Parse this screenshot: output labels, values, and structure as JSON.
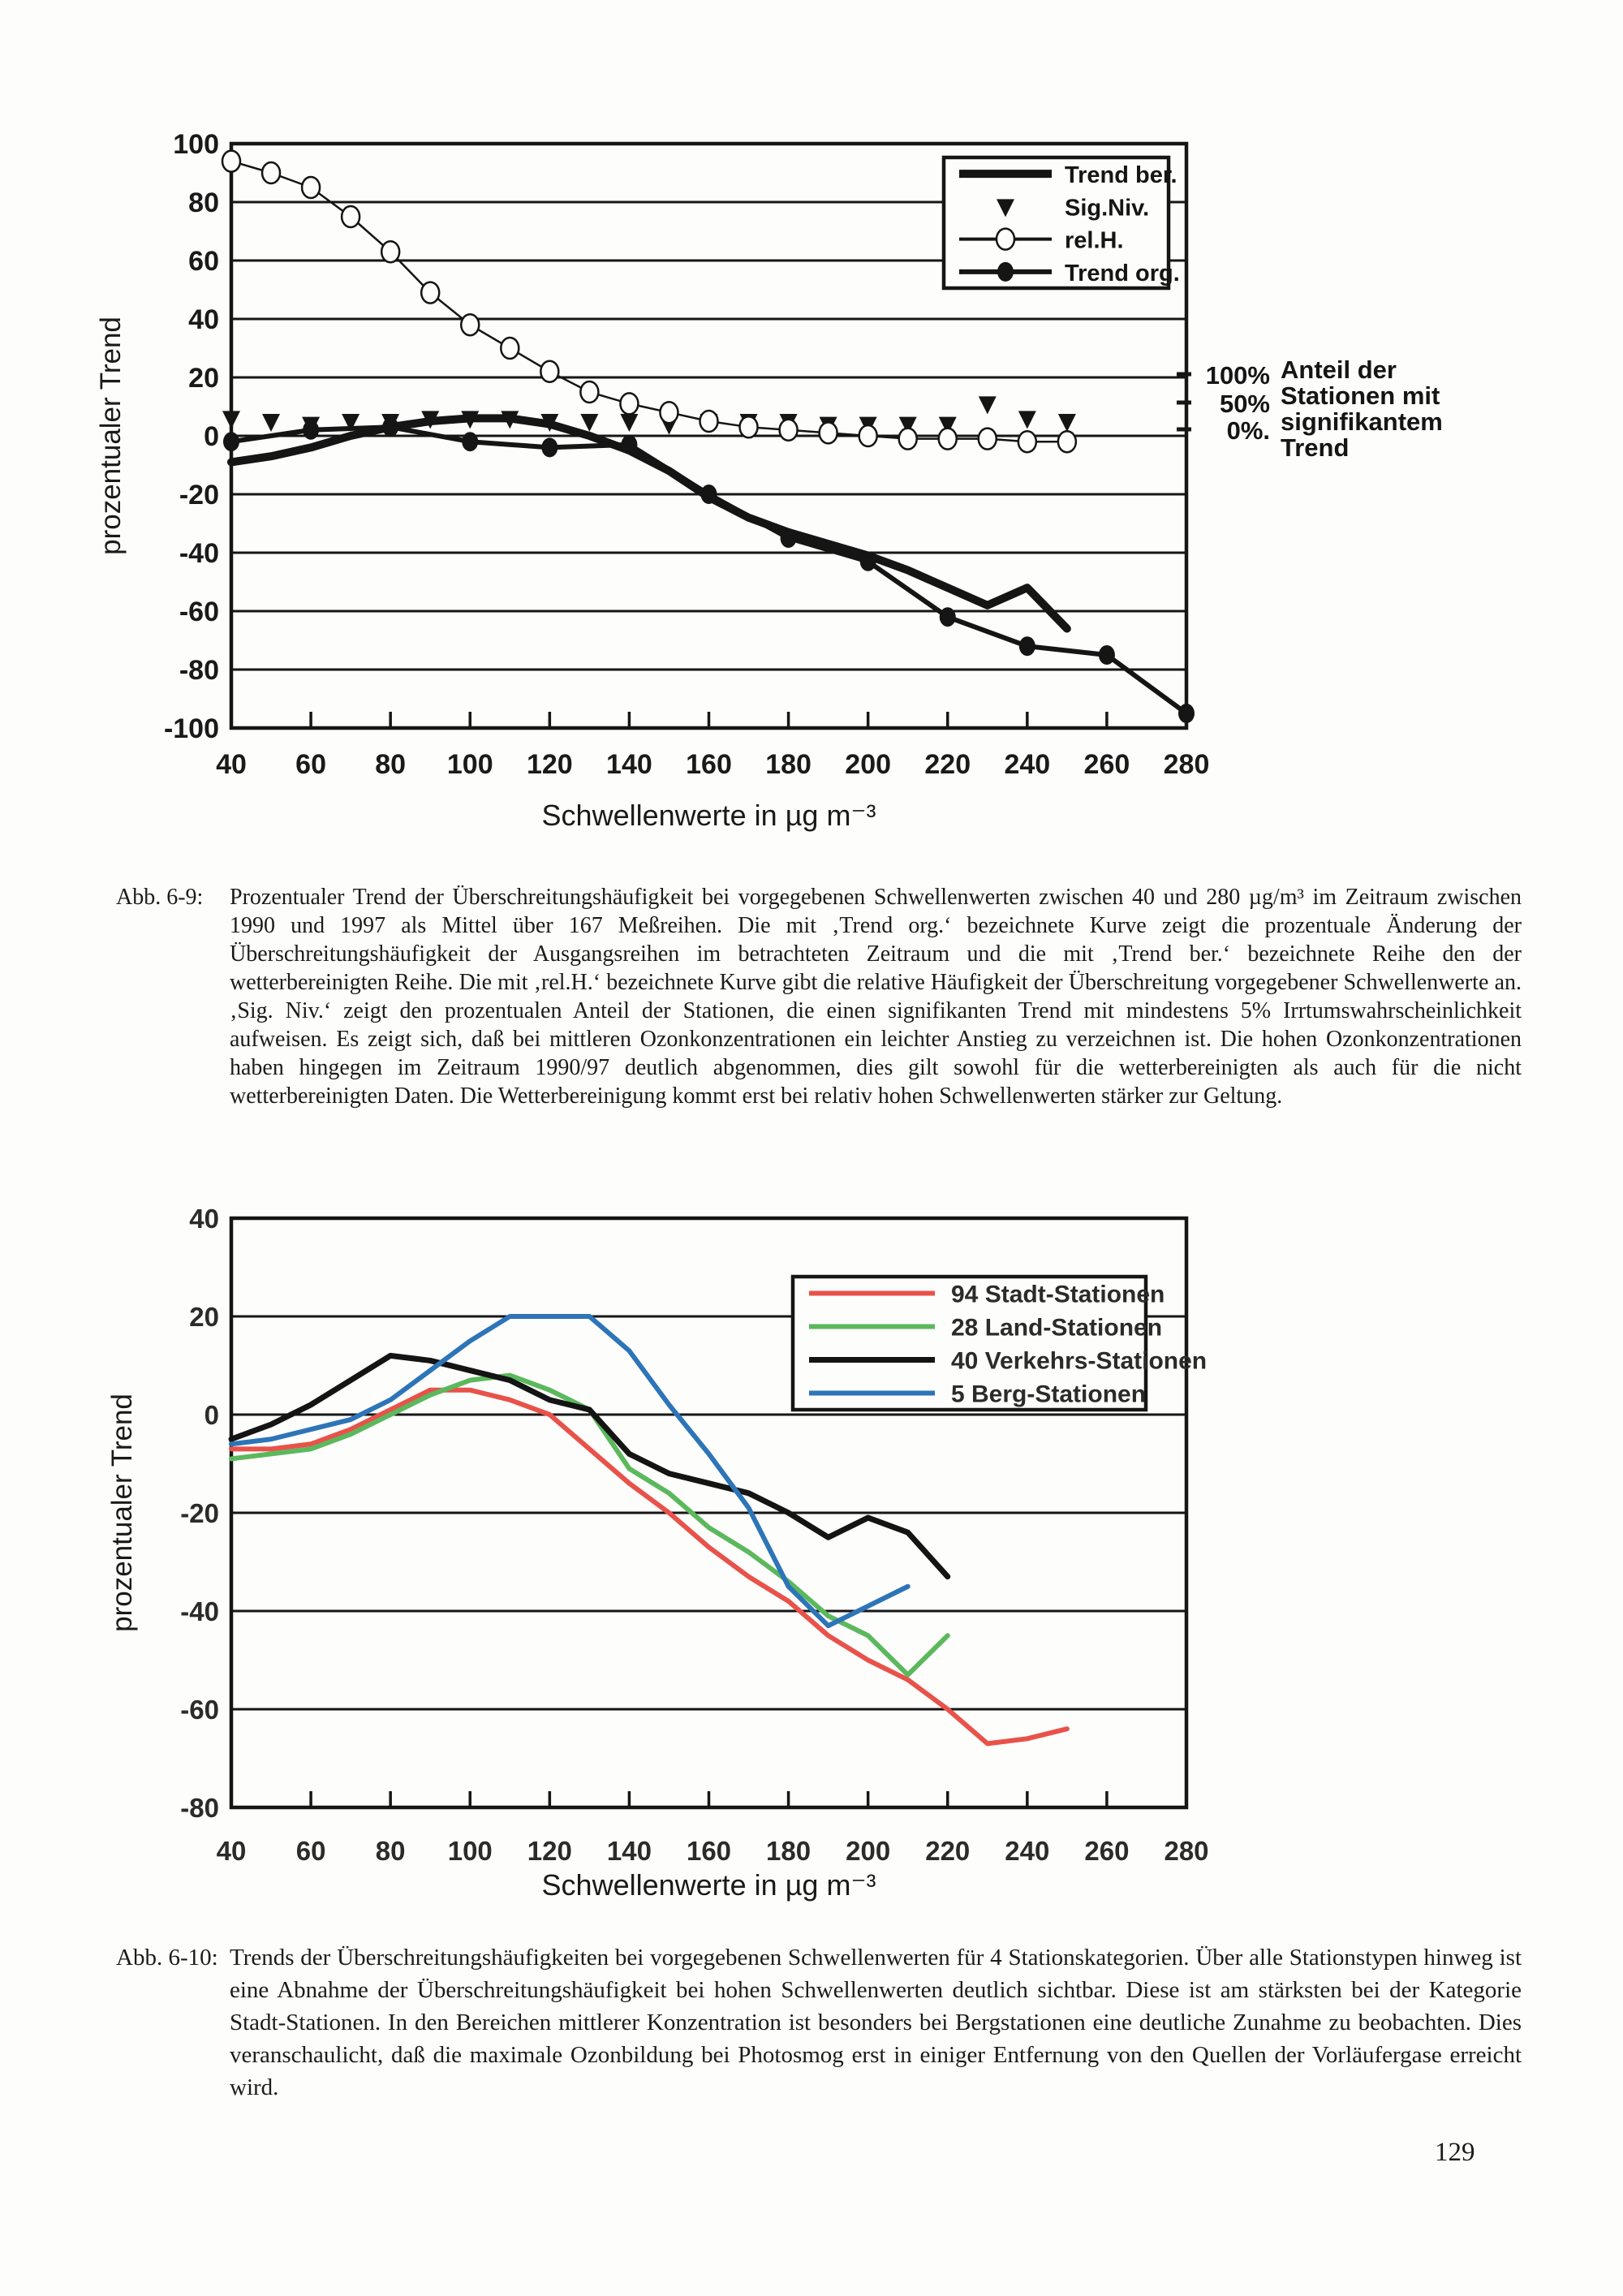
{
  "page": {
    "number": "129"
  },
  "chart_data": [
    {
      "type": "line",
      "title": "",
      "xlabel": "Schwellenwerte in µg m⁻³",
      "ylabel": "prozentualer Trend",
      "xlim": [
        40,
        280
      ],
      "ylim": [
        -100,
        100
      ],
      "xticks": [
        40,
        60,
        80,
        100,
        120,
        140,
        160,
        180,
        200,
        220,
        240,
        260,
        280
      ],
      "yticks": [
        100,
        80,
        60,
        40,
        20,
        0,
        -20,
        -40,
        -60,
        -80,
        -100
      ],
      "grid": true,
      "legend_position": "top-right",
      "legend": [
        "Trend ber.",
        "Sig.Niv.",
        "rel.H.",
        "Trend org."
      ],
      "secondary_axis": {
        "ticks": [
          "100%",
          "50%",
          "0%."
        ],
        "label_lines": [
          "Anteil der",
          "Stationen mit",
          "signifikantem",
          "Trend"
        ]
      },
      "series": [
        {
          "name": "Trend ber.",
          "color": "#151515",
          "width": 10,
          "marker": "none",
          "line": true,
          "x": [
            40,
            50,
            60,
            70,
            80,
            90,
            100,
            110,
            120,
            130,
            140,
            150,
            160,
            170,
            180,
            190,
            200,
            210,
            220,
            230,
            240,
            250
          ],
          "y": [
            -9,
            -7,
            -4,
            0,
            3,
            5,
            6,
            6,
            4,
            0,
            -5,
            -12,
            -21,
            -28,
            -33,
            -37,
            -41,
            -46,
            -52,
            -58,
            -52,
            -66
          ]
        },
        {
          "name": "Sig.Niv.",
          "color": "#151515",
          "width": 0,
          "marker": "triangle",
          "line": false,
          "x": [
            40,
            50,
            60,
            70,
            80,
            90,
            100,
            110,
            120,
            130,
            140,
            150,
            160,
            170,
            180,
            190,
            200,
            210,
            220,
            230,
            240,
            250
          ],
          "y": [
            6,
            5,
            4,
            5,
            5,
            6,
            6,
            6,
            5,
            5,
            5,
            4,
            5,
            5,
            5,
            4,
            4,
            4,
            4,
            11,
            6,
            5
          ]
        },
        {
          "name": "rel.H.",
          "color": "#151515",
          "width": 2.5,
          "marker": "circle-open",
          "line": true,
          "x": [
            40,
            50,
            60,
            70,
            80,
            90,
            100,
            110,
            120,
            130,
            140,
            150,
            160,
            170,
            180,
            190,
            200,
            210,
            220,
            230,
            240,
            250
          ],
          "y": [
            94,
            90,
            85,
            75,
            63,
            49,
            38,
            30,
            22,
            15,
            11,
            8,
            5,
            3,
            2,
            1,
            0,
            -1,
            -1,
            -1,
            -2,
            -2
          ]
        },
        {
          "name": "Trend org.",
          "color": "#151515",
          "width": 6,
          "marker": "circle-filled",
          "line": true,
          "x": [
            40,
            60,
            80,
            100,
            120,
            140,
            160,
            180,
            200,
            220,
            240,
            260,
            280
          ],
          "y": [
            -2,
            2,
            3,
            -2,
            -4,
            -3,
            -20,
            -35,
            -43,
            -62,
            -72,
            -75,
            -95
          ]
        }
      ]
    },
    {
      "type": "line",
      "title": "",
      "xlabel": "Schwellenwerte in µg m⁻³",
      "ylabel": "prozentualer Trend",
      "xlim": [
        40,
        280
      ],
      "ylim": [
        -80,
        40
      ],
      "xticks": [
        40,
        60,
        80,
        100,
        120,
        140,
        160,
        180,
        200,
        220,
        240,
        260,
        280
      ],
      "yticks": [
        40,
        20,
        0,
        -20,
        -40,
        -60,
        -80
      ],
      "grid": true,
      "legend_position": "top-right",
      "legend": [
        "94 Stadt-Stationen",
        "28 Land-Stationen",
        "40 Verkehrs-Stationen",
        "5 Berg-Stationen"
      ],
      "series": [
        {
          "name": "94 Stadt-Stationen",
          "color": "#e8524a",
          "width": 6,
          "marker": "none",
          "line": true,
          "x": [
            40,
            50,
            60,
            70,
            80,
            90,
            100,
            110,
            120,
            130,
            140,
            150,
            160,
            170,
            180,
            190,
            200,
            210,
            220,
            230,
            240,
            250
          ],
          "y": [
            -7,
            -7,
            -6,
            -3,
            1,
            5,
            5,
            3,
            0,
            -7,
            -14,
            -20,
            -27,
            -33,
            -38,
            -45,
            -50,
            -54,
            -60,
            -67,
            -66,
            -64
          ]
        },
        {
          "name": "28 Land-Stationen",
          "color": "#5cb85c",
          "width": 6,
          "marker": "none",
          "line": true,
          "x": [
            40,
            50,
            60,
            70,
            80,
            90,
            100,
            110,
            120,
            130,
            140,
            150,
            160,
            170,
            180,
            190,
            200,
            210,
            220
          ],
          "y": [
            -9,
            -8,
            -7,
            -4,
            0,
            4,
            7,
            8,
            5,
            1,
            -11,
            -16,
            -23,
            -28,
            -34,
            -41,
            -45,
            -53,
            -45
          ]
        },
        {
          "name": "40 Verkehrs-Stationen",
          "color": "#141414",
          "width": 7,
          "marker": "none",
          "line": true,
          "x": [
            40,
            50,
            60,
            70,
            80,
            90,
            100,
            110,
            120,
            130,
            140,
            150,
            160,
            170,
            180,
            190,
            200,
            210,
            220
          ],
          "y": [
            -5,
            -2,
            2,
            7,
            12,
            11,
            9,
            7,
            3,
            1,
            -8,
            -12,
            -14,
            -16,
            -20,
            -25,
            -21,
            -24,
            -33
          ]
        },
        {
          "name": "5 Berg-Stationen",
          "color": "#2d74b8",
          "width": 6,
          "marker": "none",
          "line": true,
          "x": [
            40,
            50,
            60,
            70,
            80,
            90,
            100,
            110,
            120,
            130,
            140,
            150,
            160,
            170,
            180,
            190,
            200,
            210
          ],
          "y": [
            -6,
            -5,
            -3,
            -1,
            3,
            9,
            15,
            20,
            20,
            20,
            13,
            2,
            -8,
            -19,
            -35,
            -43,
            -39,
            -35
          ]
        }
      ]
    }
  ],
  "captions": [
    {
      "label": "Abb. 6-9:",
      "text": "Prozentualer Trend der Überschreitungshäufigkeit bei vorgegebenen Schwellenwerten zwischen 40 und 280 µg/m³ im Zeitraum zwischen 1990 und 1997 als Mittel über 167 Meßreihen. Die mit ‚Trend org.‘ bezeichnete Kurve zeigt die prozentuale Änderung der Überschreitungshäufigkeit der Ausgangsreihen im betrachteten Zeitraum und die mit ‚Trend ber.‘ bezeichnete Reihe den der wetterbereinigten Reihe. Die mit ‚rel.H.‘ bezeichnete Kurve gibt die relative Häufigkeit der Überschreitung vorgegebener Schwellenwerte an. ‚Sig. Niv.‘ zeigt den prozentualen Anteil der Stationen, die einen signifikanten Trend mit mindestens 5% Irrtumswahrscheinlichkeit aufweisen. Es zeigt sich, daß bei mittleren Ozonkonzentrationen ein leichter Anstieg zu verzeichnen ist. Die hohen Ozonkonzentrationen haben hingegen im Zeitraum 1990/97 deutlich abgenommen, dies gilt sowohl für die wetterbereinigten als auch für die nicht wetterbereinigten Daten. Die Wetterbereinigung kommt erst bei relativ hohen Schwellenwerten stärker zur Geltung."
    },
    {
      "label": "Abb. 6-10:",
      "text": "Trends der Überschreitungshäufigkeiten bei vorgegebenen Schwellenwerten für 4 Stationskategorien. Über alle Stationstypen hinweg ist eine Abnahme der Überschreitungshäufigkeit bei hohen Schwellenwerten deutlich sichtbar. Diese ist am stärksten bei der Kategorie Stadt-Stationen. In den Bereichen mittlerer Konzentration ist besonders bei Bergstationen eine deutliche Zunahme zu beobachten. Dies veranschaulicht, daß die maximale Ozonbildung bei Photosmog erst in einiger Entfernung von den Quellen der Vorläufergase erreicht wird."
    }
  ]
}
